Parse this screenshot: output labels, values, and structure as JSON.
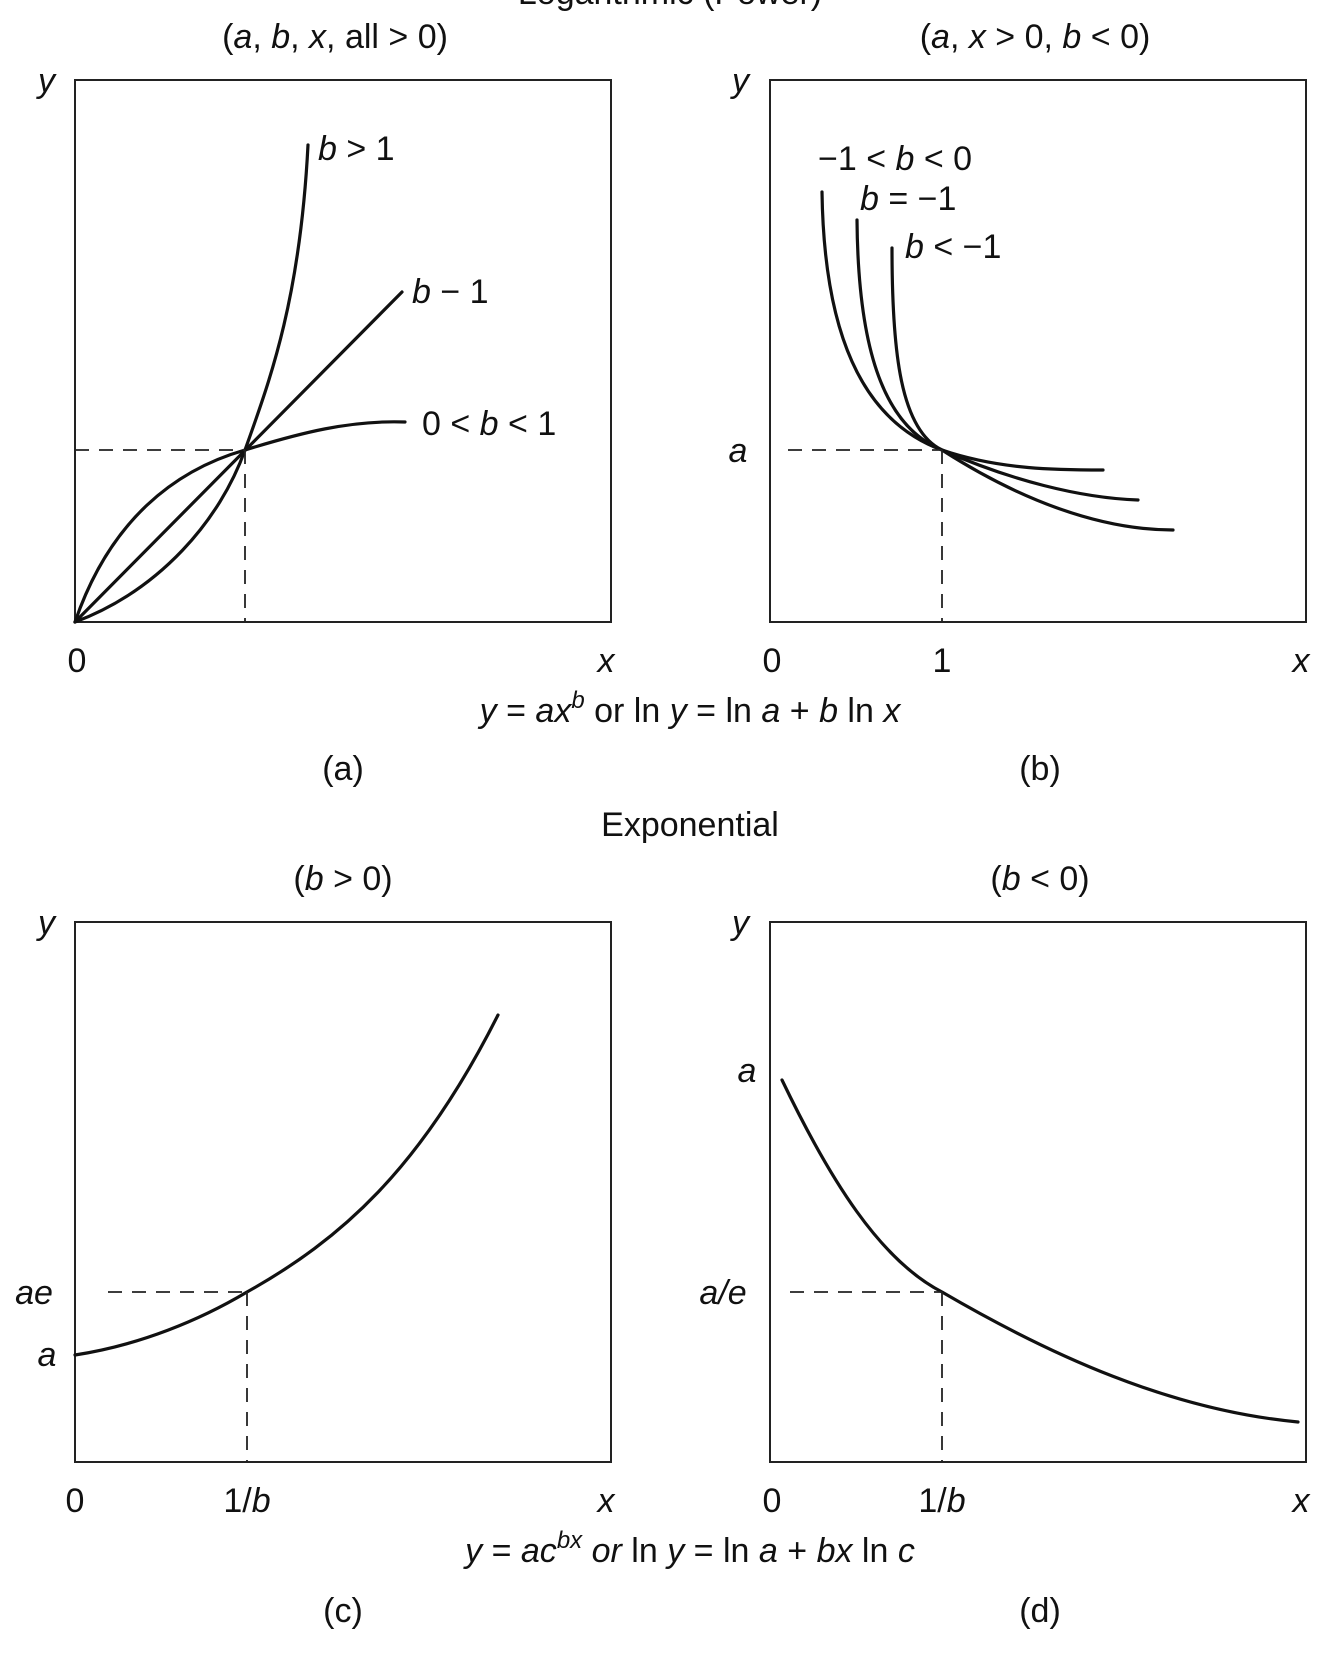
{
  "power_heading": "Logarithmic (Power)",
  "exponential_heading": "Exponential",
  "power_formula": {
    "lhs": "y",
    "eq": " = ",
    "a": "a",
    "x": "x",
    "b": "b",
    "rest": " or ln ",
    "y2": "y",
    "mid": " = ln ",
    "a2": "a",
    "plus": " + ",
    "b2": "b",
    "ln": " ln ",
    "x2": "x"
  },
  "exp_formula": {
    "lhs": "y",
    "eq": " = ",
    "ac": "ac",
    "bx": "bx",
    "or": "or",
    "ln": " ln ",
    "y2": "y",
    "mid": " = ln ",
    "a2": "a",
    "plus": " + ",
    "bx2": "bx",
    "ln2": " ln ",
    "c": "c"
  },
  "panels": {
    "a": {
      "caption": "(a)",
      "condition": {
        "open": "(",
        "v1": "a",
        "c1": ", ",
        "v2": "b",
        "c2": ", ",
        "v3": "x",
        "tail": ", all > 0)"
      },
      "y_label": "y",
      "x_label": "x",
      "origin": "0",
      "curve_labels": [
        {
          "var": "b",
          "text": " > 1"
        },
        {
          "var": "b",
          "text": " − 1"
        },
        {
          "pre": "0 < ",
          "var": "b",
          "text": " < 1"
        }
      ]
    },
    "b": {
      "caption": "(b)",
      "condition": {
        "open": "(",
        "v1": "a",
        "c1": ", ",
        "v2": "x",
        "mid": " > 0,  ",
        "v3": "b",
        "tail": " < 0)"
      },
      "y_label": "y",
      "x_label": "x",
      "origin": "0",
      "x_tick": "1",
      "y_tick": "a",
      "curve_labels": [
        {
          "pre": "−1 < ",
          "var": "b",
          "text": " < 0"
        },
        {
          "var": "b",
          "text": " = −1"
        },
        {
          "var": "b",
          "text": " < −1"
        }
      ]
    },
    "c": {
      "caption": "(c)",
      "condition": {
        "open": "(",
        "var": "b",
        "tail": " > 0)"
      },
      "y_label": "y",
      "x_label": "x",
      "origin": "0",
      "x_tick": {
        "num": "1/",
        "var": "b"
      },
      "y_ticks": [
        "ae",
        "a"
      ]
    },
    "d": {
      "caption": "(d)",
      "condition": {
        "open": "(",
        "var": "b",
        "tail": " < 0)"
      },
      "y_label": "y",
      "x_label": "x",
      "origin": "0",
      "x_tick": {
        "num": "1/",
        "var": "b"
      },
      "y_ticks": [
        "a",
        "a/e"
      ]
    }
  }
}
